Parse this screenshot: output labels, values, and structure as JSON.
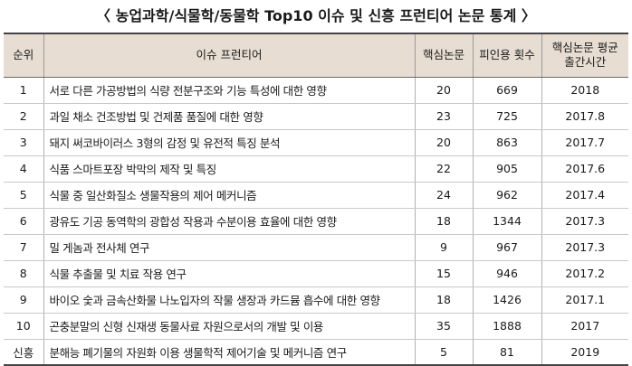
{
  "title": "〈 농업과학/식물학/동물학 Top10 이슈 및 신흥 프런티어 논문 통계 〉",
  "table": {
    "headers": {
      "rank": "순위",
      "topic": "이슈 프런티어",
      "core_papers": "핵심논문",
      "citations": "피인용 횟수",
      "avg_year_line1": "핵심논문 평균",
      "avg_year_line2": "출간시간"
    },
    "rows": [
      {
        "rank": "1",
        "topic": "서로 다른 가공방법의 식량 전분구조와 기능 특성에 대한 영향",
        "core_papers": "20",
        "citations": "669",
        "avg_year": "2018"
      },
      {
        "rank": "2",
        "topic": "과일 채소 건조방법 및 건제품 품질에 대한 영향",
        "core_papers": "23",
        "citations": "725",
        "avg_year": "2017.8"
      },
      {
        "rank": "3",
        "topic": "돼지 써코바이러스 3형의 감정 및 유전적 특징 분석",
        "core_papers": "20",
        "citations": "863",
        "avg_year": "2017.7"
      },
      {
        "rank": "4",
        "topic": "식품 스마트포장 박막의 제작 및 특징",
        "core_papers": "22",
        "citations": "905",
        "avg_year": "2017.6"
      },
      {
        "rank": "5",
        "topic": "식물 중 일산화질소 생물작용의 제어 메커니즘",
        "core_papers": "24",
        "citations": "962",
        "avg_year": "2017.4"
      },
      {
        "rank": "6",
        "topic": "광유도 기공 동역학의 광합성 작용과 수분이용 효율에 대한 영향",
        "core_papers": "18",
        "citations": "1344",
        "avg_year": "2017.3"
      },
      {
        "rank": "7",
        "topic": "밀 게놈과 전사체 연구",
        "core_papers": "9",
        "citations": "967",
        "avg_year": "2017.3"
      },
      {
        "rank": "8",
        "topic": "식물 추출물 및 치료 작용 연구",
        "core_papers": "15",
        "citations": "946",
        "avg_year": "2017.2"
      },
      {
        "rank": "9",
        "topic": "바이오 숯과 금속산화물 나노입자의 작물 생장과 카드뮴 흡수에 대한 영향",
        "core_papers": "18",
        "citations": "1426",
        "avg_year": "2017.1"
      },
      {
        "rank": "10",
        "topic": "곤충분말의 신형 신재생 동물사료 자원으로서의 개발 및 이용",
        "core_papers": "35",
        "citations": "1888",
        "avg_year": "2017"
      },
      {
        "rank": "신흥",
        "topic": "분해능 폐기물의 자원화 이용 생물학적 제어기술 및 메커니즘 연구",
        "core_papers": "5",
        "citations": "81",
        "avg_year": "2019"
      }
    ]
  }
}
